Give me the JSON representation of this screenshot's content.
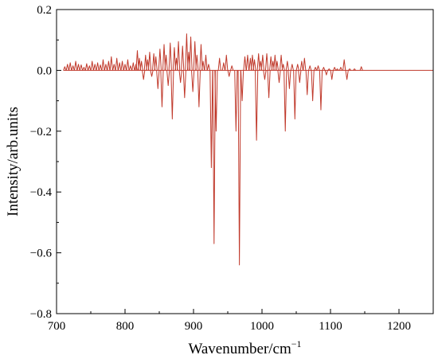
{
  "chart_data": {
    "type": "line",
    "title": "",
    "xlabel": "Wavenumber/cm",
    "xlabel_superscript": "−1",
    "ylabel": "Intensity/arb.units",
    "xlim": [
      700,
      1250
    ],
    "ylim": [
      -0.8,
      0.2
    ],
    "x_ticks": [
      700,
      800,
      900,
      1000,
      1100,
      1200
    ],
    "x_tick_labels": [
      "700",
      "800",
      "900",
      "1000",
      "1100",
      "1200"
    ],
    "y_ticks": [
      0.2,
      0.0,
      -0.2,
      -0.4,
      -0.6,
      -0.8
    ],
    "y_tick_labels": [
      "0.2",
      "0.0",
      "−0.2",
      "−0.4",
      "−0.6",
      "−0.8"
    ],
    "grid": false,
    "series": [
      {
        "color": "#c0392b",
        "baseline": 0,
        "peaks": [
          {
            "x": 712,
            "y": 0.012
          },
          {
            "x": 716,
            "y": 0.02
          },
          {
            "x": 720,
            "y": 0.025
          },
          {
            "x": 724,
            "y": 0.015
          },
          {
            "x": 728,
            "y": 0.03
          },
          {
            "x": 732,
            "y": 0.02
          },
          {
            "x": 736,
            "y": 0.018
          },
          {
            "x": 740,
            "y": 0.01
          },
          {
            "x": 744,
            "y": 0.022
          },
          {
            "x": 748,
            "y": 0.015
          },
          {
            "x": 752,
            "y": 0.03
          },
          {
            "x": 756,
            "y": 0.02
          },
          {
            "x": 760,
            "y": 0.025
          },
          {
            "x": 764,
            "y": 0.018
          },
          {
            "x": 768,
            "y": 0.035
          },
          {
            "x": 772,
            "y": 0.02
          },
          {
            "x": 776,
            "y": 0.03
          },
          {
            "x": 780,
            "y": 0.045
          },
          {
            "x": 784,
            "y": 0.02
          },
          {
            "x": 788,
            "y": 0.04
          },
          {
            "x": 792,
            "y": 0.025
          },
          {
            "x": 796,
            "y": 0.03
          },
          {
            "x": 800,
            "y": 0.02
          },
          {
            "x": 804,
            "y": 0.035
          },
          {
            "x": 808,
            "y": 0.015
          },
          {
            "x": 812,
            "y": 0.025
          },
          {
            "x": 816,
            "y": 0.02
          },
          {
            "x": 818,
            "y": 0.065
          },
          {
            "x": 821,
            "y": 0.04
          },
          {
            "x": 824,
            "y": 0.03
          },
          {
            "x": 827,
            "y": -0.03
          },
          {
            "x": 830,
            "y": 0.05
          },
          {
            "x": 833,
            "y": 0.035
          },
          {
            "x": 836,
            "y": 0.06
          },
          {
            "x": 839,
            "y": -0.02
          },
          {
            "x": 842,
            "y": 0.055
          },
          {
            "x": 845,
            "y": 0.045
          },
          {
            "x": 848,
            "y": -0.06
          },
          {
            "x": 851,
            "y": 0.07
          },
          {
            "x": 854,
            "y": -0.12
          },
          {
            "x": 857,
            "y": 0.085
          },
          {
            "x": 860,
            "y": 0.05
          },
          {
            "x": 863,
            "y": -0.05
          },
          {
            "x": 866,
            "y": 0.09
          },
          {
            "x": 869,
            "y": -0.16
          },
          {
            "x": 872,
            "y": 0.075
          },
          {
            "x": 875,
            "y": 0.04
          },
          {
            "x": 878,
            "y": 0.095
          },
          {
            "x": 881,
            "y": -0.04
          },
          {
            "x": 884,
            "y": 0.08
          },
          {
            "x": 887,
            "y": -0.09
          },
          {
            "x": 890,
            "y": 0.12
          },
          {
            "x": 893,
            "y": 0.06
          },
          {
            "x": 896,
            "y": 0.11
          },
          {
            "x": 899,
            "y": -0.07
          },
          {
            "x": 902,
            "y": 0.095
          },
          {
            "x": 905,
            "y": 0.05
          },
          {
            "x": 908,
            "y": -0.12
          },
          {
            "x": 911,
            "y": 0.085
          },
          {
            "x": 914,
            "y": 0.03
          },
          {
            "x": 918,
            "y": 0.05
          },
          {
            "x": 922,
            "y": 0.02
          },
          {
            "x": 926,
            "y": -0.32
          },
          {
            "x": 930,
            "y": -0.57
          },
          {
            "x": 933,
            "y": -0.2
          },
          {
            "x": 938,
            "y": 0.04
          },
          {
            "x": 944,
            "y": 0.025
          },
          {
            "x": 948,
            "y": 0.05
          },
          {
            "x": 952,
            "y": -0.02
          },
          {
            "x": 956,
            "y": 0.015
          },
          {
            "x": 962,
            "y": -0.2
          },
          {
            "x": 967,
            "y": -0.64
          },
          {
            "x": 971,
            "y": -0.1
          },
          {
            "x": 975,
            "y": 0.045
          },
          {
            "x": 979,
            "y": 0.05
          },
          {
            "x": 983,
            "y": 0.04
          },
          {
            "x": 986,
            "y": 0.05
          },
          {
            "x": 989,
            "y": 0.035
          },
          {
            "x": 992,
            "y": -0.23
          },
          {
            "x": 995,
            "y": 0.055
          },
          {
            "x": 998,
            "y": 0.03
          },
          {
            "x": 1001,
            "y": 0.05
          },
          {
            "x": 1004,
            "y": -0.03
          },
          {
            "x": 1007,
            "y": 0.055
          },
          {
            "x": 1010,
            "y": -0.09
          },
          {
            "x": 1013,
            "y": 0.045
          },
          {
            "x": 1016,
            "y": 0.03
          },
          {
            "x": 1019,
            "y": 0.05
          },
          {
            "x": 1022,
            "y": 0.03
          },
          {
            "x": 1025,
            "y": -0.04
          },
          {
            "x": 1028,
            "y": 0.05
          },
          {
            "x": 1031,
            "y": 0.02
          },
          {
            "x": 1034,
            "y": -0.2
          },
          {
            "x": 1037,
            "y": 0.03
          },
          {
            "x": 1040,
            "y": -0.06
          },
          {
            "x": 1044,
            "y": 0.02
          },
          {
            "x": 1048,
            "y": -0.16
          },
          {
            "x": 1052,
            "y": 0.02
          },
          {
            "x": 1055,
            "y": -0.04
          },
          {
            "x": 1058,
            "y": 0.03
          },
          {
            "x": 1062,
            "y": 0.04
          },
          {
            "x": 1066,
            "y": -0.08
          },
          {
            "x": 1070,
            "y": 0.015
          },
          {
            "x": 1074,
            "y": -0.1
          },
          {
            "x": 1078,
            "y": 0.01
          },
          {
            "x": 1082,
            "y": 0.015
          },
          {
            "x": 1086,
            "y": -0.13
          },
          {
            "x": 1090,
            "y": 0.01
          },
          {
            "x": 1094,
            "y": -0.015
          },
          {
            "x": 1098,
            "y": 0.005
          },
          {
            "x": 1102,
            "y": -0.03
          },
          {
            "x": 1106,
            "y": 0.01
          },
          {
            "x": 1110,
            "y": 0.005
          },
          {
            "x": 1115,
            "y": 0.01
          },
          {
            "x": 1120,
            "y": 0.035
          },
          {
            "x": 1124,
            "y": -0.03
          },
          {
            "x": 1128,
            "y": 0.005
          },
          {
            "x": 1135,
            "y": 0.005
          },
          {
            "x": 1145,
            "y": 0.012
          }
        ]
      }
    ]
  }
}
